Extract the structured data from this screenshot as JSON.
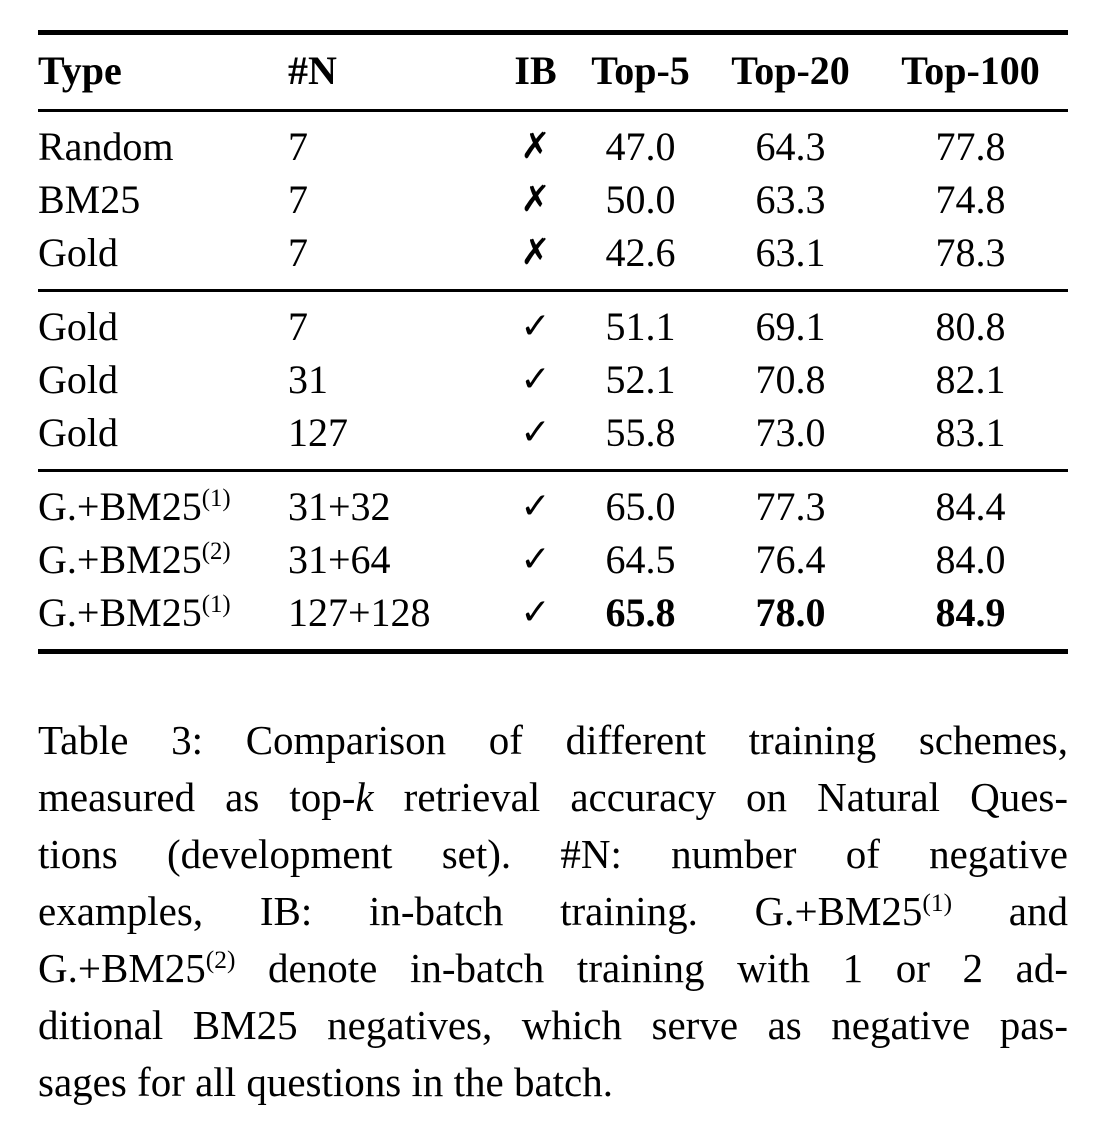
{
  "page": {
    "background_color": "#ffffff",
    "text_color": "#000000"
  },
  "table": {
    "columns": [
      {
        "label": "Type",
        "align": "left"
      },
      {
        "label": "#N",
        "align": "left"
      },
      {
        "label": "IB",
        "align": "center"
      },
      {
        "label": "Top-5",
        "align": "center"
      },
      {
        "label": "Top-20",
        "align": "center"
      },
      {
        "label": "Top-100",
        "align": "center"
      }
    ],
    "marks": {
      "no": "✗",
      "yes": "✓"
    },
    "sections": [
      {
        "rows": [
          {
            "type": "Random",
            "n": "7",
            "ib": "✗",
            "top5": "47.0",
            "top20": "64.3",
            "top100": "77.8"
          },
          {
            "type": "BM25",
            "n": "7",
            "ib": "✗",
            "top5": "50.0",
            "top20": "63.3",
            "top100": "74.8"
          },
          {
            "type": "Gold",
            "n": "7",
            "ib": "✗",
            "top5": "42.6",
            "top20": "63.1",
            "top100": "78.3"
          }
        ]
      },
      {
        "rows": [
          {
            "type": "Gold",
            "n": "7",
            "ib": "✓",
            "top5": "51.1",
            "top20": "69.1",
            "top100": "80.8"
          },
          {
            "type": "Gold",
            "n": "31",
            "ib": "✓",
            "top5": "52.1",
            "top20": "70.8",
            "top100": "82.1"
          },
          {
            "type": "Gold",
            "n": "127",
            "ib": "✓",
            "top5": "55.8",
            "top20": "73.0",
            "top100": "83.1"
          }
        ]
      },
      {
        "rows": [
          {
            "type": "G.+BM25^(1)",
            "n": "31+32",
            "ib": "✓",
            "top5": "65.0",
            "top20": "77.3",
            "top100": "84.4"
          },
          {
            "type": "G.+BM25^(2)",
            "n": "31+64",
            "ib": "✓",
            "top5": "64.5",
            "top20": "76.4",
            "top100": "84.0"
          },
          {
            "type": "G.+BM25^(1)",
            "n": "127+128",
            "ib": "✓",
            "top5": "65.8",
            "top20": "78.0",
            "top100": "84.9",
            "bold_metrics": true
          }
        ]
      }
    ]
  },
  "caption": {
    "lines": [
      [
        {
          "t": "Table 3: Comparison of different training schemes,"
        }
      ],
      [
        {
          "t": "measured as top-"
        },
        {
          "t": "k",
          "style": "italic"
        },
        {
          "t": " retrieval accuracy on Natural Ques-"
        }
      ],
      [
        {
          "t": "tions (development set). #N: number of negative"
        }
      ],
      [
        {
          "t": "examples, IB: in-batch training. G.+BM25"
        },
        {
          "t": "(1)",
          "style": "sup"
        },
        {
          "t": " and"
        }
      ],
      [
        {
          "t": "G.+BM25"
        },
        {
          "t": "(2)",
          "style": "sup"
        },
        {
          "t": " denote in-batch training with 1 or 2 ad-"
        }
      ],
      [
        {
          "t": "ditional BM25 negatives, which serve as negative pas-"
        }
      ],
      [
        {
          "t": "sages for all questions in the batch."
        }
      ]
    ]
  }
}
